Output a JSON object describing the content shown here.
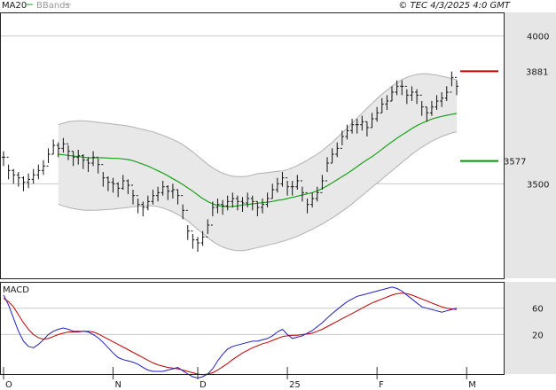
{
  "header": {
    "indicator_ma": "MA20",
    "indicator_bb": "BBands",
    "copyright": "© TEC 4/3/2025 4:0 GMT"
  },
  "colors": {
    "ma": "#1aa31a",
    "bands_fill": "#e8e8e8",
    "bands_edge": "#b0b0b0",
    "price_bar": "#111111",
    "resistance": "#c00000",
    "support": "#009900",
    "macd_line": "#2020c0",
    "signal_line": "#c00000",
    "grid": "#c8c8c8",
    "frame": "#222222",
    "axis_bg": "#e6e6e6"
  },
  "chart_data": {
    "type": "ohlc",
    "title": "",
    "x_labels": [
      "O",
      "N",
      "D",
      "25",
      "F",
      "M"
    ],
    "x_label_positions": [
      0,
      22,
      39,
      57,
      75,
      93
    ],
    "y_axis": {
      "range": [
        3180,
        4080
      ],
      "ticks": [
        3500,
        4000
      ],
      "tick_labels": [
        "3500",
        "4000"
      ]
    },
    "levels": {
      "resistance": {
        "value": 3881,
        "label": "3881"
      },
      "support": {
        "value": 3577,
        "label": "3577"
      }
    },
    "close": [
      3590,
      3545,
      3530,
      3520,
      3505,
      3515,
      3530,
      3545,
      3560,
      3600,
      3630,
      3620,
      3635,
      3610,
      3590,
      3595,
      3580,
      3570,
      3590,
      3565,
      3520,
      3505,
      3500,
      3485,
      3510,
      3495,
      3460,
      3430,
      3420,
      3440,
      3460,
      3470,
      3490,
      3475,
      3480,
      3460,
      3410,
      3340,
      3310,
      3300,
      3320,
      3360,
      3420,
      3430,
      3425,
      3440,
      3450,
      3440,
      3435,
      3450,
      3440,
      3420,
      3430,
      3450,
      3480,
      3500,
      3520,
      3490,
      3490,
      3510,
      3470,
      3430,
      3450,
      3470,
      3510,
      3570,
      3600,
      3620,
      3660,
      3680,
      3700,
      3700,
      3710,
      3690,
      3720,
      3740,
      3770,
      3780,
      3810,
      3830,
      3830,
      3800,
      3810,
      3800,
      3760,
      3740,
      3760,
      3780,
      3790,
      3810,
      3860,
      3830
    ],
    "high": [
      3610,
      3565,
      3550,
      3540,
      3525,
      3535,
      3550,
      3565,
      3580,
      3620,
      3650,
      3640,
      3655,
      3630,
      3610,
      3615,
      3600,
      3590,
      3610,
      3585,
      3540,
      3525,
      3520,
      3505,
      3530,
      3515,
      3480,
      3450,
      3440,
      3460,
      3480,
      3490,
      3510,
      3495,
      3500,
      3480,
      3430,
      3360,
      3330,
      3320,
      3340,
      3380,
      3440,
      3450,
      3445,
      3460,
      3470,
      3460,
      3455,
      3470,
      3460,
      3440,
      3450,
      3470,
      3500,
      3520,
      3540,
      3510,
      3510,
      3530,
      3490,
      3450,
      3470,
      3490,
      3530,
      3590,
      3620,
      3640,
      3680,
      3700,
      3720,
      3720,
      3730,
      3710,
      3740,
      3760,
      3790,
      3800,
      3830,
      3850,
      3850,
      3820,
      3830,
      3820,
      3780,
      3760,
      3780,
      3800,
      3810,
      3830,
      3880,
      3850
    ],
    "low": [
      3560,
      3515,
      3500,
      3490,
      3475,
      3485,
      3500,
      3515,
      3530,
      3570,
      3600,
      3590,
      3605,
      3580,
      3560,
      3565,
      3550,
      3540,
      3560,
      3535,
      3490,
      3475,
      3470,
      3455,
      3480,
      3465,
      3430,
      3400,
      3390,
      3410,
      3430,
      3440,
      3460,
      3445,
      3450,
      3430,
      3380,
      3310,
      3280,
      3270,
      3290,
      3330,
      3390,
      3400,
      3395,
      3410,
      3420,
      3410,
      3405,
      3420,
      3410,
      3390,
      3400,
      3420,
      3450,
      3470,
      3490,
      3460,
      3460,
      3480,
      3440,
      3400,
      3420,
      3440,
      3480,
      3540,
      3570,
      3590,
      3630,
      3650,
      3670,
      3670,
      3680,
      3660,
      3690,
      3710,
      3740,
      3750,
      3780,
      3800,
      3800,
      3770,
      3780,
      3770,
      3730,
      3710,
      3730,
      3750,
      3760,
      3780,
      3830,
      3800
    ],
    "ma20": [
      3600,
      3598,
      3596,
      3594,
      3592,
      3590,
      3588,
      3588,
      3588,
      3588,
      3587,
      3586,
      3586,
      3584,
      3582,
      3578,
      3572,
      3566,
      3560,
      3552,
      3544,
      3536,
      3527,
      3517,
      3508,
      3497,
      3486,
      3475,
      3462,
      3450,
      3440,
      3432,
      3426,
      3424,
      3422,
      3423,
      3425,
      3428,
      3430,
      3432,
      3434,
      3436,
      3438,
      3440,
      3444,
      3446,
      3450,
      3454,
      3458,
      3462,
      3466,
      3470,
      3476,
      3484,
      3493,
      3503,
      3514,
      3524,
      3535,
      3546,
      3558,
      3570,
      3581,
      3592,
      3604,
      3617,
      3630,
      3642,
      3654,
      3665,
      3676,
      3687,
      3697,
      3705,
      3712,
      3719,
      3724,
      3728,
      3732,
      3735,
      3738
    ],
    "bb_upper": [
      3700,
      3705,
      3710,
      3712,
      3713,
      3713,
      3712,
      3710,
      3708,
      3706,
      3704,
      3702,
      3700,
      3698,
      3695,
      3692,
      3688,
      3684,
      3680,
      3676,
      3670,
      3664,
      3657,
      3650,
      3642,
      3632,
      3620,
      3608,
      3594,
      3580,
      3566,
      3554,
      3544,
      3536,
      3530,
      3526,
      3524,
      3524,
      3526,
      3530,
      3534,
      3536,
      3538,
      3540,
      3542,
      3544,
      3548,
      3554,
      3562,
      3570,
      3580,
      3590,
      3600,
      3612,
      3626,
      3640,
      3656,
      3672,
      3688,
      3705,
      3722,
      3739,
      3756,
      3772,
      3788,
      3803,
      3817,
      3830,
      3842,
      3852,
      3860,
      3866,
      3870,
      3872,
      3872,
      3870,
      3868,
      3864,
      3860,
      3856,
      3852
    ],
    "bb_lower": [
      3430,
      3425,
      3420,
      3416,
      3413,
      3411,
      3410,
      3410,
      3411,
      3412,
      3413,
      3414,
      3416,
      3418,
      3420,
      3422,
      3424,
      3425,
      3426,
      3425,
      3422,
      3418,
      3412,
      3405,
      3396,
      3386,
      3374,
      3360,
      3346,
      3332,
      3318,
      3305,
      3294,
      3286,
      3280,
      3276,
      3274,
      3274,
      3276,
      3280,
      3284,
      3288,
      3292,
      3296,
      3300,
      3305,
      3310,
      3316,
      3322,
      3330,
      3338,
      3346,
      3355,
      3364,
      3374,
      3384,
      3395,
      3407,
      3419,
      3432,
      3446,
      3460,
      3474,
      3488,
      3502,
      3516,
      3530,
      3544,
      3558,
      3572,
      3586,
      3600,
      3612,
      3624,
      3634,
      3644,
      3652,
      3660,
      3666,
      3672,
      3676
    ],
    "macd": {
      "label": "MACD",
      "y_ticks": [
        20,
        60
      ],
      "tick_labels": [
        "20",
        "60"
      ],
      "y_range": [
        -40,
        100
      ],
      "macd": [
        80,
        65,
        45,
        25,
        10,
        2,
        0,
        5,
        12,
        20,
        25,
        28,
        30,
        28,
        25,
        25,
        25,
        24,
        20,
        15,
        8,
        0,
        -8,
        -15,
        -18,
        -20,
        -22,
        -25,
        -30,
        -34,
        -36,
        -36,
        -36,
        -34,
        -32,
        -30,
        -35,
        -40,
        -44,
        -46,
        -44,
        -40,
        -32,
        -20,
        -10,
        -2,
        2,
        4,
        6,
        8,
        10,
        10,
        12,
        14,
        18,
        24,
        28,
        20,
        14,
        16,
        18,
        22,
        26,
        32,
        38,
        45,
        52,
        58,
        64,
        70,
        74,
        78,
        80,
        82,
        84,
        86,
        88,
        90,
        92,
        90,
        86,
        80,
        74,
        68,
        62,
        60,
        58,
        56,
        54,
        56,
        58,
        60
      ],
      "signal": [
        75,
        70,
        62,
        50,
        38,
        28,
        20,
        15,
        13,
        14,
        17,
        20,
        22,
        24,
        24,
        24,
        25,
        25,
        24,
        21,
        17,
        13,
        9,
        5,
        1,
        -3,
        -7,
        -11,
        -15,
        -19,
        -23,
        -26,
        -28,
        -30,
        -31,
        -32,
        -34,
        -36,
        -38,
        -40,
        -41,
        -40,
        -38,
        -34,
        -29,
        -24,
        -18,
        -13,
        -8,
        -4,
        0,
        3,
        6,
        8,
        11,
        14,
        17,
        18,
        19,
        19,
        20,
        21,
        22,
        25,
        28,
        32,
        36,
        40,
        44,
        48,
        52,
        56,
        60,
        64,
        68,
        71,
        74,
        77,
        80,
        82,
        83,
        82,
        80,
        77,
        74,
        71,
        68,
        65,
        62,
        60,
        59,
        58
      ]
    }
  }
}
